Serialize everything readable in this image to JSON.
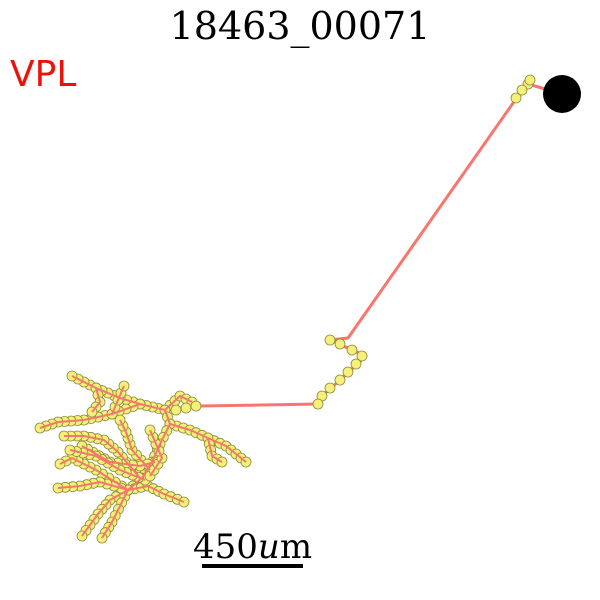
{
  "title": "18463_00071",
  "region_label": "VPL",
  "scale_bar": {
    "value": "450",
    "unit_symbol": "u",
    "unit_suffix": "m"
  },
  "colors": {
    "axon": "#f8766d",
    "bouton_fill": "#f5f07a",
    "bouton_stroke": "#8a8a3a",
    "soma": "#000000",
    "region_label": "#e8140c",
    "scale_bar": "#000000"
  }
}
